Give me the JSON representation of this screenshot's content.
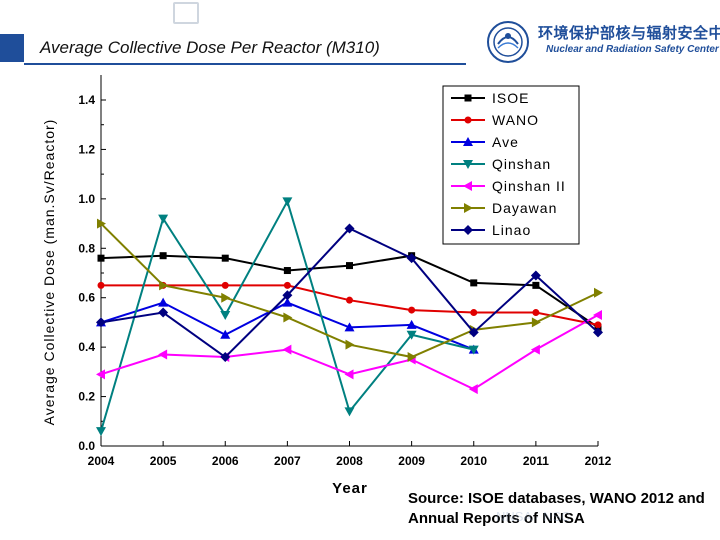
{
  "slide": {
    "title": "Average Collective Dose Per Reactor (M310)",
    "org_cn": "环境保护部核与辐射安全中心",
    "org_en": "Nuclear and Radiation Safety Center",
    "source_note": "Source: ISOE databases, WANO 2012 and Annual Reports of NNSA",
    "accent_color": "#1f4e9a"
  },
  "chart_data": {
    "type": "line",
    "title": "Average Collective Dose Per Reactor (M310)",
    "xlabel": "Year",
    "ylabel": "Average Collective Dose (man.Sv/Reactor)",
    "categories": [
      "2004",
      "2005",
      "2006",
      "2007",
      "2008",
      "2009",
      "2010",
      "2011",
      "2012"
    ],
    "yticks": [
      "0.0",
      "0.2",
      "0.4",
      "0.6",
      "0.8",
      "1.0",
      "1.2",
      "1.4"
    ],
    "ylim": [
      0,
      1.4
    ],
    "legend_position": "top-right",
    "series": [
      {
        "name": "ISOE",
        "color": "#000000",
        "marker": "square",
        "values": [
          0.76,
          0.77,
          0.76,
          0.71,
          0.73,
          0.77,
          0.66,
          0.65,
          0.48
        ]
      },
      {
        "name": "WANO",
        "color": "#e00000",
        "marker": "circle",
        "values": [
          0.65,
          0.65,
          0.65,
          0.65,
          0.59,
          0.55,
          0.54,
          0.54,
          0.49
        ]
      },
      {
        "name": "Ave",
        "color": "#0000e0",
        "marker": "triangle-up",
        "values": [
          0.5,
          0.58,
          0.45,
          0.58,
          0.48,
          0.49,
          0.39,
          null,
          null
        ]
      },
      {
        "name": "Qinshan",
        "color": "#008080",
        "marker": "triangle-down",
        "values": [
          0.06,
          0.92,
          0.53,
          0.99,
          0.14,
          0.45,
          0.39,
          null,
          null
        ]
      },
      {
        "name": "Qinshan II",
        "color": "#ff00ff",
        "marker": "triangle-left",
        "values": [
          0.29,
          0.37,
          0.36,
          0.39,
          0.29,
          0.35,
          0.23,
          0.39,
          0.53
        ]
      },
      {
        "name": "Dayawan",
        "color": "#808000",
        "marker": "triangle-right",
        "values": [
          0.9,
          0.65,
          0.6,
          0.52,
          0.41,
          0.36,
          0.47,
          0.5,
          0.62
        ]
      },
      {
        "name": "Linao",
        "color": "#000080",
        "marker": "diamond",
        "values": [
          0.5,
          0.54,
          0.36,
          0.61,
          0.88,
          0.76,
          0.46,
          0.69,
          0.46
        ]
      }
    ]
  }
}
